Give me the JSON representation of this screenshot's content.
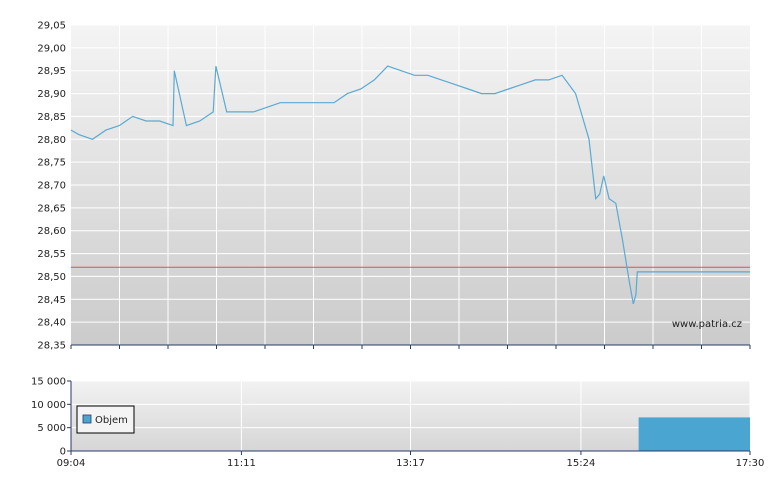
{
  "chart_data": [
    {
      "type": "line",
      "title": "",
      "xlabel": "",
      "ylabel": "",
      "ylim": [
        28.35,
        29.05
      ],
      "yticks": [
        "29,05",
        "29,00",
        "28,95",
        "28,90",
        "28,85",
        "28,80",
        "28,75",
        "28,70",
        "28,65",
        "28,60",
        "28,55",
        "28,50",
        "28,45",
        "28,40",
        "28,35"
      ],
      "reference_line": 28.52,
      "watermark": "www.patria.cz",
      "grid": true,
      "series": [
        {
          "name": "",
          "x": [
            "09:04",
            "09:10",
            "09:20",
            "09:30",
            "09:40",
            "09:50",
            "10:00",
            "10:10",
            "10:20",
            "10:21",
            "10:30",
            "10:40",
            "10:50",
            "10:52",
            "11:00",
            "11:10",
            "11:20",
            "11:30",
            "11:40",
            "11:50",
            "12:00",
            "12:10",
            "12:20",
            "12:30",
            "12:40",
            "12:50",
            "13:00",
            "13:10",
            "13:20",
            "13:30",
            "13:40",
            "13:50",
            "14:00",
            "14:10",
            "14:20",
            "14:30",
            "14:40",
            "14:50",
            "15:00",
            "15:10",
            "15:20",
            "15:30",
            "15:35",
            "15:38",
            "15:41",
            "15:45",
            "15:50",
            "15:55",
            "16:00",
            "16:03",
            "16:05",
            "16:06",
            "16:07",
            "17:30"
          ],
          "values": [
            28.82,
            28.81,
            28.8,
            28.82,
            28.83,
            28.85,
            28.84,
            28.84,
            28.83,
            28.95,
            28.83,
            28.84,
            28.86,
            28.96,
            28.86,
            28.86,
            28.86,
            28.87,
            28.88,
            28.88,
            28.88,
            28.88,
            28.88,
            28.9,
            28.91,
            28.93,
            28.96,
            28.95,
            28.94,
            28.94,
            28.93,
            28.92,
            28.91,
            28.9,
            28.9,
            28.91,
            28.92,
            28.93,
            28.93,
            28.94,
            28.9,
            28.8,
            28.67,
            28.68,
            28.72,
            28.67,
            28.66,
            28.58,
            28.49,
            28.44,
            28.46,
            28.51,
            28.51,
            28.51
          ]
        }
      ]
    },
    {
      "type": "bar",
      "title": "",
      "xlabel": "",
      "ylabel": "",
      "ylim": [
        0,
        15000
      ],
      "yticks": [
        "15 000",
        "10 000",
        "5 000",
        "0"
      ],
      "x_tick_labels": [
        "09:04",
        "11:11",
        "13:17",
        "15:24",
        "17:30"
      ],
      "legend": {
        "position": "top-left",
        "label": "Objem"
      },
      "series": [
        {
          "name": "Objem",
          "x_start": [
            "16:07"
          ],
          "x_end": [
            "17:30"
          ],
          "values": [
            7200
          ]
        }
      ]
    }
  ],
  "colors": {
    "line": "#5aaad2",
    "reference_line": "#e05050",
    "volume_bar": "#4aa6d0",
    "axis": "#2a3a6a"
  }
}
